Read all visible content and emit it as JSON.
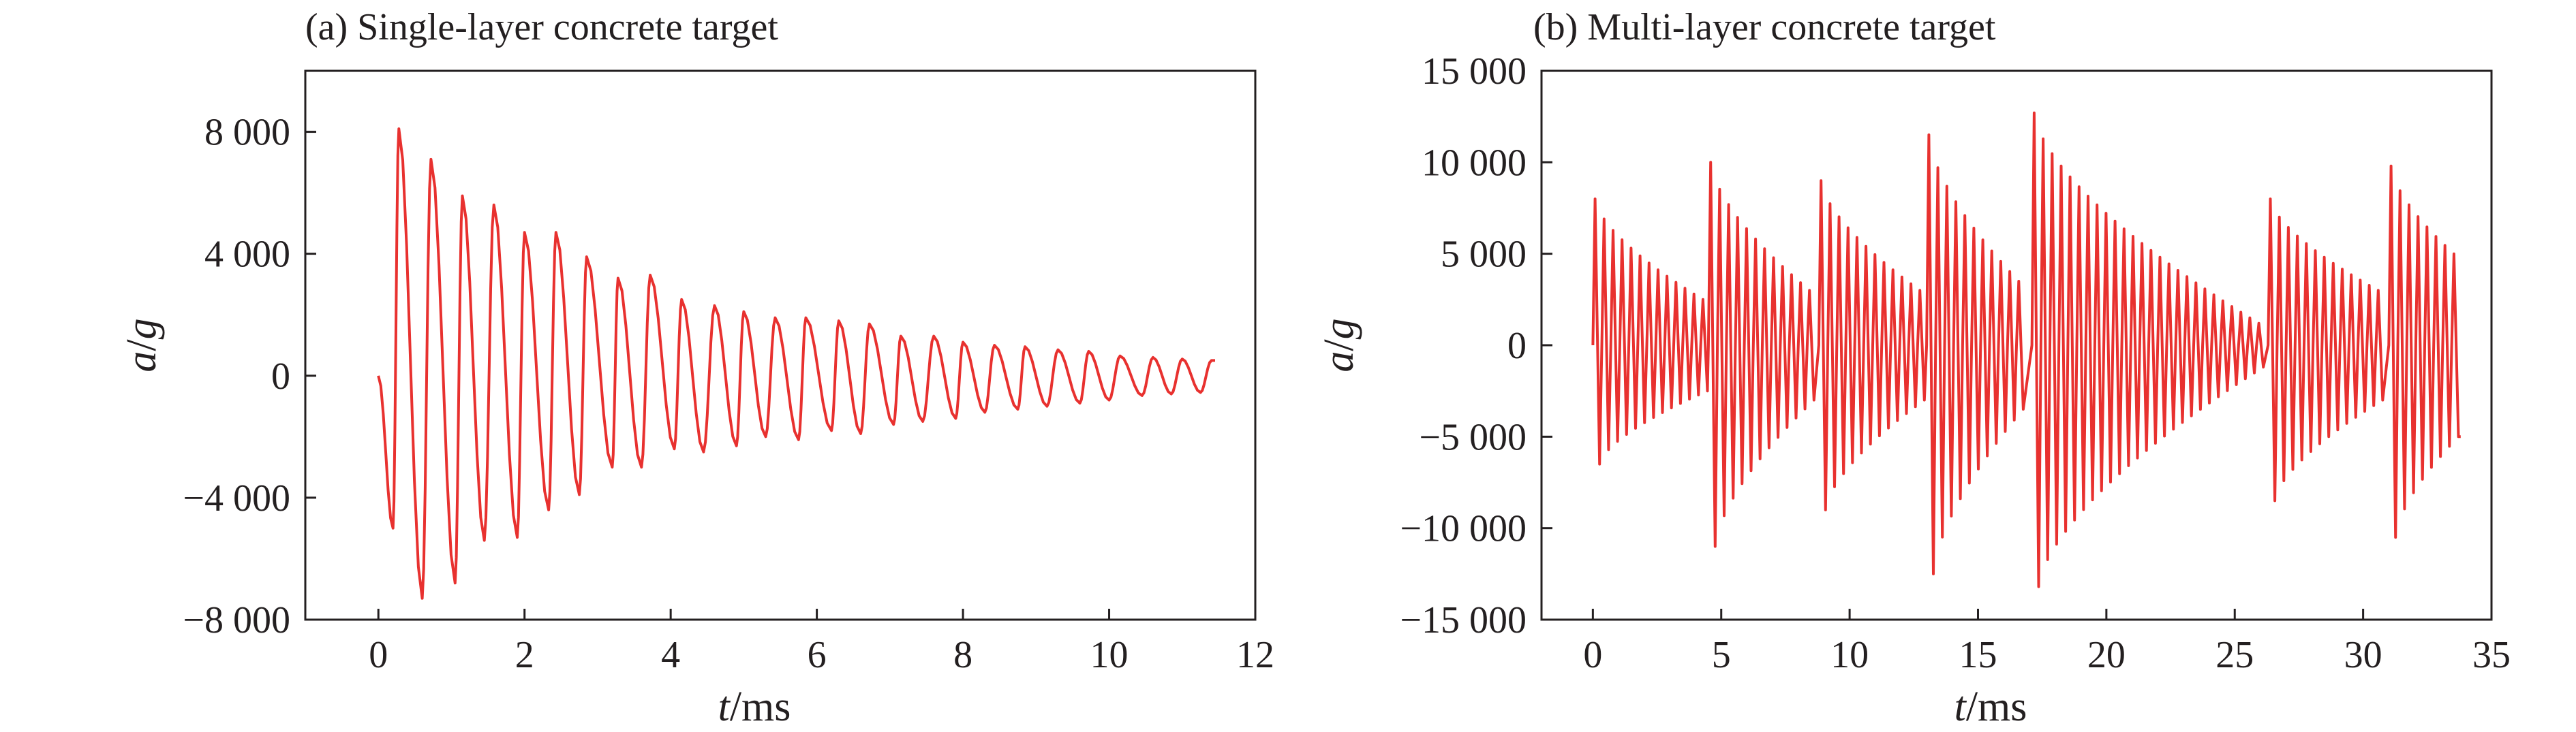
{
  "chart_data": [
    {
      "type": "line",
      "title": "(a) Single-layer concrete target",
      "xlabel": {
        "var": "t",
        "unit": "/ms"
      },
      "ylabel": {
        "var": "a",
        "unit": "/",
        "var2": "g"
      },
      "xlim": [
        -1,
        12
      ],
      "ylim": [
        -8000,
        10000
      ],
      "x_ticks": [
        0,
        2,
        4,
        6,
        8,
        10,
        12
      ],
      "x_tick_labels": [
        "0",
        "2",
        "4",
        "6",
        "8",
        "10",
        "12"
      ],
      "y_ticks": [
        -8000,
        -4000,
        0,
        4000,
        8000
      ],
      "y_tick_labels": [
        "−8 000",
        "−4 000",
        "0",
        "4 000",
        "8 000"
      ],
      "grid": false,
      "series": [
        {
          "color": "#e8312f",
          "signal": {
            "kind": "decaying-oscillation",
            "t_start": 0,
            "t_end": 11.45,
            "period_ms": 0.41,
            "first_trough": -5000,
            "peaks": [
              [
                0.28,
                8100
              ],
              [
                0.72,
                7100
              ],
              [
                1.15,
                5900
              ],
              [
                1.58,
                5600
              ],
              [
                2.0,
                4700
              ],
              [
                2.43,
                4700
              ],
              [
                2.85,
                3900
              ],
              [
                3.28,
                3200
              ],
              [
                3.72,
                3300
              ],
              [
                4.15,
                2500
              ],
              [
                4.6,
                2300
              ],
              [
                5.0,
                2100
              ],
              [
                5.43,
                1900
              ],
              [
                5.85,
                1900
              ],
              [
                6.3,
                1800
              ],
              [
                6.72,
                1700
              ],
              [
                7.15,
                1300
              ],
              [
                7.6,
                1300
              ],
              [
                8.0,
                1100
              ],
              [
                8.43,
                1000
              ],
              [
                8.85,
                950
              ],
              [
                9.3,
                850
              ],
              [
                9.72,
                800
              ],
              [
                10.15,
                650
              ],
              [
                10.6,
                600
              ],
              [
                11.0,
                550
              ],
              [
                11.4,
                500
              ]
            ],
            "troughs": [
              [
                0.2,
                -5000
              ],
              [
                0.6,
                -7300
              ],
              [
                1.05,
                -6800
              ],
              [
                1.45,
                -5400
              ],
              [
                1.9,
                -5300
              ],
              [
                2.33,
                -4400
              ],
              [
                2.75,
                -3900
              ],
              [
                3.2,
                -3000
              ],
              [
                3.6,
                -3000
              ],
              [
                4.05,
                -2400
              ],
              [
                4.45,
                -2500
              ],
              [
                4.9,
                -2300
              ],
              [
                5.3,
                -2000
              ],
              [
                5.75,
                -2100
              ],
              [
                6.2,
                -1800
              ],
              [
                6.6,
                -1900
              ],
              [
                7.05,
                -1600
              ],
              [
                7.45,
                -1500
              ],
              [
                7.9,
                -1400
              ],
              [
                8.3,
                -1200
              ],
              [
                8.75,
                -1100
              ],
              [
                9.15,
                -1000
              ],
              [
                9.6,
                -900
              ],
              [
                10.0,
                -800
              ],
              [
                10.45,
                -650
              ],
              [
                10.85,
                -600
              ],
              [
                11.25,
                -550
              ]
            ]
          }
        }
      ]
    },
    {
      "type": "line",
      "title": "(b) Multi-layer concrete target",
      "xlabel": {
        "var": "t",
        "unit": "/ms"
      },
      "ylabel": {
        "var": "a",
        "unit": "/",
        "var2": "g"
      },
      "xlim": [
        -2,
        35
      ],
      "ylim": [
        -15000,
        15000
      ],
      "x_ticks": [
        0,
        5,
        10,
        15,
        20,
        25,
        30,
        35
      ],
      "x_tick_labels": [
        "0",
        "5",
        "10",
        "15",
        "20",
        "25",
        "30",
        "35"
      ],
      "y_ticks": [
        -15000,
        -10000,
        -5000,
        0,
        5000,
        10000,
        15000
      ],
      "y_tick_labels": [
        "−15 000",
        "−10 000",
        "−5 000",
        "0",
        "5 000",
        "10 000",
        "15 000"
      ],
      "grid": false,
      "series": [
        {
          "color": "#e8312f",
          "signal": {
            "kind": "repeated-impact-bursts",
            "t_start": 0,
            "t_end": 33.8,
            "period_ms": 0.35,
            "bursts": [
              {
                "start": 0.0,
                "end": 4.4,
                "peak": 8000,
                "trough": -6500,
                "end_peak": 2500,
                "end_trough": -2500
              },
              {
                "start": 4.5,
                "end": 8.7,
                "peak": 10000,
                "trough": -11000,
                "end_peak": 3000,
                "end_trough": -3000
              },
              {
                "start": 8.8,
                "end": 12.9,
                "peak": 9000,
                "trough": -9000,
                "end_peak": 3000,
                "end_trough": -3000
              },
              {
                "start": 13.0,
                "end": 17.0,
                "peak": 11500,
                "trough": -12500,
                "end_peak": 3500,
                "end_trough": -3500
              },
              {
                "start": 17.1,
                "end": 26.2,
                "peak": 12700,
                "trough": -13200,
                "end_peak": 1200,
                "end_trough": -1200
              },
              {
                "start": 26.3,
                "end": 30.9,
                "peak": 8000,
                "trough": -8500,
                "end_peak": 3000,
                "end_trough": -3000
              },
              {
                "start": 31.0,
                "end": 33.8,
                "peak": 9800,
                "trough": -10500,
                "end_peak": 5000,
                "end_trough": -5000
              }
            ]
          }
        }
      ]
    }
  ]
}
